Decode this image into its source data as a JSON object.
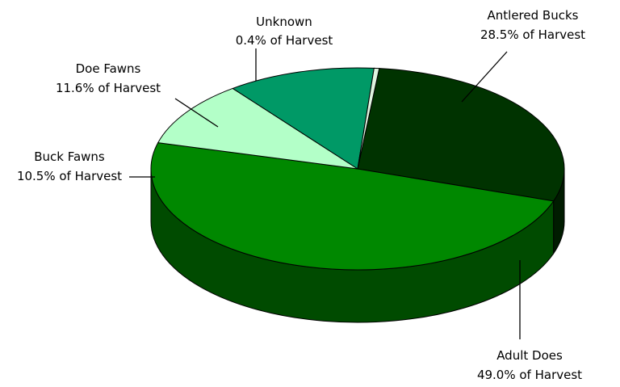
{
  "chart_data": {
    "type": "pie",
    "style": "3d",
    "title": "",
    "slices": [
      {
        "name": "Antlered Bucks",
        "value": 28.5,
        "caption": "28.5% of Harvest",
        "color": "#003300"
      },
      {
        "name": "Adult Does",
        "value": 49.0,
        "caption": "49.0% of Harvest",
        "color": "#008800"
      },
      {
        "name": "Buck Fawns",
        "value": 10.5,
        "caption": "10.5% of Harvest",
        "color": "#b3ffc8"
      },
      {
        "name": "Doe Fawns",
        "value": 11.6,
        "caption": "11.6% of Harvest",
        "color": "#009966"
      },
      {
        "name": "Unknown",
        "value": 0.4,
        "caption": "0.4% of Harvest",
        "color": "#e0f5e0"
      }
    ]
  }
}
